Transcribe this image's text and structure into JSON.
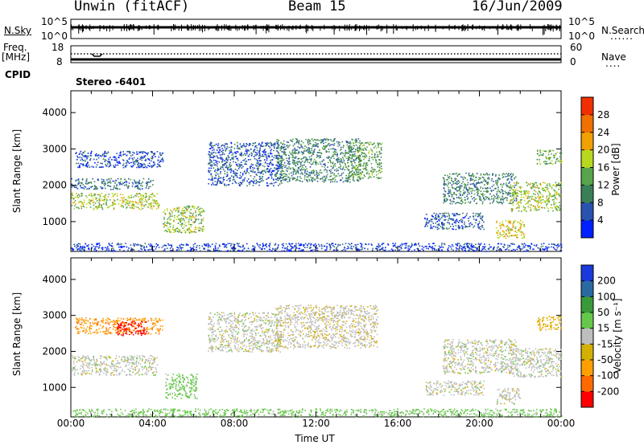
{
  "header": {
    "station": "Unwin (fitACF)",
    "beam": "Beam 15",
    "date": "16/Jun/2009"
  },
  "nsky_panel": {
    "left_label": "N.Sky",
    "right_label": "N.Search",
    "top_tick": "10^5",
    "bottom_tick": "10^0"
  },
  "freq_panel": {
    "left_label_1": "Freq.",
    "left_label_2": "[MHz]",
    "left_tick_top": "18",
    "left_tick_bottom": "8",
    "right_label": "Nave",
    "right_tick_top": "60",
    "right_tick_bottom": "0",
    "cpid_label": "CPID",
    "cpid_value": "Stereo -6401"
  },
  "colors": {
    "power": [
      "#0020ff",
      "#2a52b0",
      "#3a7f58",
      "#58a44a",
      "#b8d820",
      "#f0a000",
      "#f07000",
      "#f03000",
      "#ff0000"
    ],
    "velocity": [
      "#ff0000",
      "#ff6a00",
      "#ffa000",
      "#d4b000",
      "#bebebe",
      "#66c84a",
      "#3a9a3a",
      "#2a6aa0",
      "#1a3adc"
    ]
  },
  "chart_data": [
    {
      "type": "heatmap",
      "title": "Power",
      "ylabel": "Slant Range [km]",
      "ylim": [
        180,
        4600
      ],
      "yticks": [
        "1000",
        "2000",
        "3000",
        "4000"
      ],
      "xlim": [
        0,
        24
      ],
      "colorbar": {
        "label": "Power [dB]",
        "ticks": [
          "4",
          "8",
          "12",
          "16",
          "20",
          "24",
          "28"
        ],
        "range": [
          0,
          32
        ]
      },
      "scatter_regions": [
        {
          "t0": 0.0,
          "t1": 4.3,
          "r0": 1350,
          "r1": 1800,
          "value": 17
        },
        {
          "t0": 0.0,
          "t1": 4.0,
          "r0": 1900,
          "r1": 2200,
          "value": 8
        },
        {
          "t0": 0.2,
          "t1": 4.5,
          "r0": 2500,
          "r1": 2950,
          "value": 5
        },
        {
          "t0": 4.5,
          "t1": 6.5,
          "r0": 700,
          "r1": 1450,
          "value": 16
        },
        {
          "t0": 6.7,
          "t1": 10.3,
          "r0": 2000,
          "r1": 3200,
          "value": 6
        },
        {
          "t0": 10.0,
          "t1": 14.2,
          "r0": 2100,
          "r1": 3300,
          "value": 10
        },
        {
          "t0": 13.5,
          "t1": 15.2,
          "r0": 2200,
          "r1": 3200,
          "value": 13
        },
        {
          "t0": 18.2,
          "t1": 21.8,
          "r0": 1500,
          "r1": 2350,
          "value": 10
        },
        {
          "t0": 17.3,
          "t1": 20.2,
          "r0": 800,
          "r1": 1250,
          "value": 6
        },
        {
          "t0": 20.8,
          "t1": 22.2,
          "r0": 550,
          "r1": 1050,
          "value": 20
        },
        {
          "t0": 21.5,
          "t1": 24.0,
          "r0": 1300,
          "r1": 2100,
          "value": 17
        },
        {
          "t0": 22.8,
          "t1": 24.0,
          "r0": 2600,
          "r1": 3000,
          "value": 14
        },
        {
          "t0": 0.0,
          "t1": 24.0,
          "r0": 200,
          "r1": 420,
          "value": 4
        }
      ]
    },
    {
      "type": "heatmap",
      "title": "Velocity",
      "xlabel": "Time UT",
      "ylabel": "Slant Range [km]",
      "ylim": [
        180,
        4600
      ],
      "yticks": [
        "1000",
        "2000",
        "3000",
        "4000"
      ],
      "xlim": [
        0,
        24
      ],
      "xticks": [
        "00:00",
        "04:00",
        "08:00",
        "12:00",
        "16:00",
        "20:00",
        "00:00"
      ],
      "colorbar": {
        "label": "Velocity [m s⁻¹]",
        "ticks": [
          "-200",
          "-100",
          "-50",
          "-15",
          "15",
          "50",
          "100",
          "200"
        ]
      },
      "scatter_regions": [
        {
          "t0": 0.0,
          "t1": 4.2,
          "r0": 1350,
          "r1": 1900,
          "value": 0
        },
        {
          "t0": 0.2,
          "t1": 4.5,
          "r0": 2500,
          "r1": 2950,
          "value": -90
        },
        {
          "t0": 2.2,
          "t1": 3.7,
          "r0": 2450,
          "r1": 2850,
          "value": -220
        },
        {
          "t0": 4.6,
          "t1": 6.2,
          "r0": 700,
          "r1": 1400,
          "value": 30
        },
        {
          "t0": 6.7,
          "t1": 10.3,
          "r0": 2000,
          "r1": 3100,
          "value": 0
        },
        {
          "t0": 10.0,
          "t1": 15.0,
          "r0": 2100,
          "r1": 3300,
          "value": -5
        },
        {
          "t0": 18.2,
          "t1": 21.8,
          "r0": 1400,
          "r1": 2350,
          "value": 0
        },
        {
          "t0": 17.3,
          "t1": 20.2,
          "r0": 800,
          "r1": 1200,
          "value": 0
        },
        {
          "t0": 20.8,
          "t1": 22.0,
          "r0": 550,
          "r1": 1000,
          "value": 0
        },
        {
          "t0": 21.5,
          "t1": 24.0,
          "r0": 1300,
          "r1": 2100,
          "value": 0
        },
        {
          "t0": 22.8,
          "t1": 24.0,
          "r0": 2600,
          "r1": 3000,
          "value": -40
        },
        {
          "t0": 0.0,
          "t1": 24.0,
          "r0": 200,
          "r1": 420,
          "value": 30
        }
      ]
    }
  ]
}
